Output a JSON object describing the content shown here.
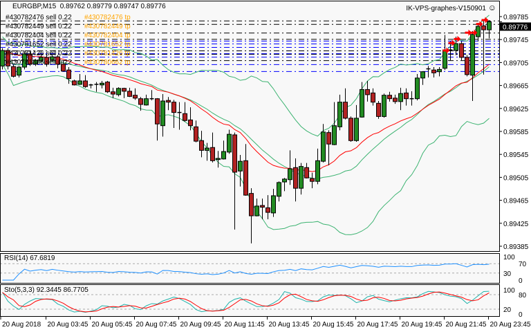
{
  "header": {
    "symbol": "EURGBP,M15",
    "ohlc": "0.89762 0.89779 0.89747 0.89776",
    "account_title": "IK-VPS-graphes-V150901",
    "smiley_icon": "smiley-face-icon"
  },
  "colors": {
    "background": "#f8f8f8",
    "bull": "#228b22",
    "bear": "#b22222",
    "bands": "#3cb371",
    "ma": "#ff0000",
    "rsi": "#1e90ff",
    "sto_main": "#20b2aa",
    "sto_signal": "#ff0000",
    "order_sell": "#000000",
    "order_tp": "#0000ff",
    "tp_text": "#ffa500",
    "arrow": "#ff0000"
  },
  "price_axis": {
    "labels": [
      "0.89785",
      "0.89745",
      "0.89705",
      "0.89665",
      "0.89625",
      "0.89585",
      "0.89545",
      "0.89505",
      "0.89465",
      "0.89425",
      "0.89385"
    ],
    "current_price": "0.89776"
  },
  "time_axis": {
    "labels": [
      {
        "bar": 0,
        "text": "20 Aug 2018"
      },
      {
        "bar": 8,
        "text": "20 Aug 03:45"
      },
      {
        "bar": 16,
        "text": "20 Aug 05:45"
      },
      {
        "bar": 24,
        "text": "20 Aug 07:45"
      },
      {
        "bar": 32,
        "text": "20 Aug 09:45"
      },
      {
        "bar": 40,
        "text": "20 Aug 11:45"
      },
      {
        "bar": 48,
        "text": "20 Aug 13:45"
      },
      {
        "bar": 56,
        "text": "20 Aug 15:45"
      },
      {
        "bar": 64,
        "text": "20 Aug 17:45"
      },
      {
        "bar": 72,
        "text": "20 Aug 19:45"
      },
      {
        "bar": 80,
        "text": "20 Aug 21:45"
      },
      {
        "bar": 88,
        "text": "20 Aug 23:45"
      }
    ]
  },
  "orders": {
    "sell_lines": [
      0.89778,
      0.89772,
      0.89757,
      0.89746,
      0.89726,
      0.8972,
      0.89709
    ],
    "tp_lines": [
      0.89743,
      0.89738,
      0.89732,
      0.89721,
      0.89715,
      0.89702,
      0.8969
    ],
    "labels": [
      {
        "text": "#430782476 sell 0.22",
        "price": 0.8979,
        "kind": "sell"
      },
      {
        "text": "#430782449 sell 0.22",
        "price": 0.89781,
        "kind": "sell"
      },
      {
        "text": "#430782404 sell 0.22",
        "price": 0.89765,
        "kind": "sell"
      },
      {
        "text": "#430781652 sell 0.22",
        "price": 0.89754,
        "kind": "sell"
      },
      {
        "text": "#430781426 sell 0.22",
        "price": 0.89748,
        "kind": "sell"
      },
      {
        "text": "#430781386 sell 0.22",
        "price": 0.89733,
        "kind": "sell"
      },
      {
        "text": "#430782476 tp",
        "price": 0.8976,
        "kind": "tp"
      },
      {
        "text": "#430782449 tp",
        "price": 0.8975,
        "kind": "tp"
      },
      {
        "text": "#430782404 tp",
        "price": 0.89742,
        "kind": "tp"
      },
      {
        "text": "#430781652 tp",
        "price": 0.89727,
        "kind": "tp"
      },
      {
        "text": "#430781426 tp",
        "price": 0.89718,
        "kind": "tp"
      },
      {
        "text": "#430780662 tp",
        "price": 0.89697,
        "kind": "tp"
      }
    ],
    "arrows": [
      {
        "bar": 81,
        "price": 0.89726
      },
      {
        "bar": 82,
        "price": 0.89739
      },
      {
        "bar": 83,
        "price": 0.89746
      },
      {
        "bar": 85,
        "price": 0.89757
      },
      {
        "bar": 86,
        "price": 0.89757
      },
      {
        "bar": 87,
        "price": 0.89772
      },
      {
        "bar": 88,
        "price": 0.89779
      }
    ]
  },
  "indicators": {
    "rsi": {
      "label": "RSI(14) 67.6819",
      "levels": [
        "100",
        "70",
        "30",
        "0"
      ]
    },
    "sto": {
      "label": "Sto(5,3,3) 92.3445 86.7705",
      "levels": [
        "100",
        "80",
        "20",
        "0"
      ]
    }
  },
  "chart_data": {
    "type": "candlestick",
    "symbol": "EURGBP",
    "timeframe": "M15",
    "ylim": [
      0.89365,
      0.8981
    ],
    "columns": [
      "open",
      "high",
      "low",
      "close"
    ],
    "ohlc": [
      [
        0.89699,
        0.8973,
        0.89693,
        0.89726
      ],
      [
        0.89726,
        0.8973,
        0.89693,
        0.89699
      ],
      [
        0.89698,
        0.89702,
        0.89679,
        0.89681
      ],
      [
        0.89683,
        0.89699,
        0.89679,
        0.89697
      ],
      [
        0.89697,
        0.89724,
        0.89693,
        0.8972
      ],
      [
        0.8972,
        0.89724,
        0.89699,
        0.89702
      ],
      [
        0.89702,
        0.89711,
        0.89699,
        0.89709
      ],
      [
        0.89708,
        0.89718,
        0.89705,
        0.89714
      ],
      [
        0.89714,
        0.89718,
        0.89698,
        0.89702
      ],
      [
        0.8971,
        0.89718,
        0.89708,
        0.89715
      ],
      [
        0.89715,
        0.89718,
        0.89695,
        0.89702
      ],
      [
        0.89702,
        0.89708,
        0.89689,
        0.8969
      ],
      [
        0.89692,
        0.89697,
        0.89668,
        0.89677
      ],
      [
        0.89673,
        0.89675,
        0.89665,
        0.89666
      ],
      [
        0.89667,
        0.89685,
        0.89666,
        0.89673
      ],
      [
        0.89673,
        0.89683,
        0.89661,
        0.89663
      ],
      [
        0.89666,
        0.89668,
        0.8966,
        0.89666
      ],
      [
        0.89666,
        0.89671,
        0.89654,
        0.89667
      ],
      [
        0.89666,
        0.89673,
        0.8966,
        0.89669
      ],
      [
        0.89671,
        0.89673,
        0.89652,
        0.89654
      ],
      [
        0.89654,
        0.89661,
        0.89643,
        0.8965
      ],
      [
        0.89649,
        0.89662,
        0.89646,
        0.8966
      ],
      [
        0.8966,
        0.89661,
        0.89643,
        0.89655
      ],
      [
        0.89655,
        0.89661,
        0.89645,
        0.89646
      ],
      [
        0.89648,
        0.8966,
        0.8964,
        0.89643
      ],
      [
        0.89642,
        0.89645,
        0.89621,
        0.89632
      ],
      [
        0.89631,
        0.89649,
        0.8963,
        0.89642
      ],
      [
        0.89642,
        0.89657,
        0.89639,
        0.89641
      ],
      [
        0.89642,
        0.89643,
        0.89569,
        0.89598
      ],
      [
        0.89595,
        0.8965,
        0.89576,
        0.89638
      ],
      [
        0.89639,
        0.89645,
        0.89622,
        0.89636
      ],
      [
        0.89636,
        0.8964,
        0.89591,
        0.89618
      ],
      [
        0.89618,
        0.89636,
        0.89588,
        0.89617
      ],
      [
        0.89616,
        0.89636,
        0.89602,
        0.89604
      ],
      [
        0.89605,
        0.89627,
        0.89587,
        0.89595
      ],
      [
        0.89593,
        0.89604,
        0.89566,
        0.89568
      ],
      [
        0.89569,
        0.89586,
        0.8954,
        0.89552
      ],
      [
        0.89552,
        0.89565,
        0.89534,
        0.89556
      ],
      [
        0.89557,
        0.89583,
        0.89531,
        0.89534
      ],
      [
        0.89536,
        0.89551,
        0.89522,
        0.89538
      ],
      [
        0.89537,
        0.89569,
        0.89536,
        0.8955
      ],
      [
        0.89549,
        0.89588,
        0.89546,
        0.8958
      ],
      [
        0.89579,
        0.89583,
        0.89414,
        0.89514
      ],
      [
        0.89516,
        0.89544,
        0.89489,
        0.89533
      ],
      [
        0.89534,
        0.89563,
        0.89473,
        0.89474
      ],
      [
        0.89477,
        0.89486,
        0.8939,
        0.89438
      ],
      [
        0.89438,
        0.89468,
        0.89437,
        0.89455
      ],
      [
        0.89456,
        0.89468,
        0.89432,
        0.89453
      ],
      [
        0.89452,
        0.89474,
        0.89432,
        0.89444
      ],
      [
        0.89443,
        0.89485,
        0.89436,
        0.89473
      ],
      [
        0.89472,
        0.89498,
        0.89463,
        0.89496
      ],
      [
        0.89497,
        0.89504,
        0.89481,
        0.89502
      ],
      [
        0.89501,
        0.89552,
        0.89492,
        0.8952
      ],
      [
        0.89522,
        0.89538,
        0.89463,
        0.89486
      ],
      [
        0.89486,
        0.8953,
        0.89475,
        0.89524
      ],
      [
        0.89522,
        0.8953,
        0.89503,
        0.89504
      ],
      [
        0.89503,
        0.89513,
        0.89486,
        0.89498
      ],
      [
        0.89498,
        0.89555,
        0.89493,
        0.89534
      ],
      [
        0.89533,
        0.89598,
        0.89531,
        0.89584
      ],
      [
        0.89583,
        0.89587,
        0.89526,
        0.89563
      ],
      [
        0.89562,
        0.89636,
        0.89561,
        0.89595
      ],
      [
        0.89593,
        0.89649,
        0.89587,
        0.89636
      ],
      [
        0.89636,
        0.8966,
        0.89606,
        0.89608
      ],
      [
        0.89608,
        0.89611,
        0.89567,
        0.89569
      ],
      [
        0.89569,
        0.89631,
        0.89567,
        0.89608
      ],
      [
        0.8961,
        0.89671,
        0.89609,
        0.89658
      ],
      [
        0.89658,
        0.89673,
        0.89637,
        0.89649
      ],
      [
        0.89652,
        0.8966,
        0.8963,
        0.89636
      ],
      [
        0.89634,
        0.89638,
        0.89607,
        0.89611
      ],
      [
        0.89611,
        0.89651,
        0.89609,
        0.89648
      ],
      [
        0.89648,
        0.89654,
        0.89637,
        0.89642
      ],
      [
        0.89643,
        0.89649,
        0.89633,
        0.89637
      ],
      [
        0.89637,
        0.89661,
        0.89622,
        0.89651
      ],
      [
        0.89652,
        0.8966,
        0.8963,
        0.89642
      ],
      [
        0.89642,
        0.89655,
        0.8963,
        0.89642
      ],
      [
        0.89642,
        0.89685,
        0.89639,
        0.89678
      ],
      [
        0.89678,
        0.8969,
        0.89666,
        0.89689
      ],
      [
        0.89693,
        0.89699,
        0.89679,
        0.89694
      ],
      [
        0.89692,
        0.89697,
        0.89679,
        0.89687
      ],
      [
        0.89689,
        0.89697,
        0.89681,
        0.89693
      ],
      [
        0.89695,
        0.89753,
        0.89692,
        0.89727
      ],
      [
        0.89726,
        0.89742,
        0.89709,
        0.89727
      ],
      [
        0.89726,
        0.8975,
        0.89718,
        0.89738
      ],
      [
        0.89738,
        0.89742,
        0.89709,
        0.89714
      ],
      [
        0.89714,
        0.89718,
        0.89681,
        0.89684
      ],
      [
        0.89683,
        0.8976,
        0.89638,
        0.89754
      ],
      [
        0.8975,
        0.89774,
        0.89742,
        0.89768
      ],
      [
        0.89769,
        0.89778,
        0.89684,
        0.89762
      ],
      [
        0.89762,
        0.89779,
        0.89747,
        0.89776
      ]
    ]
  }
}
